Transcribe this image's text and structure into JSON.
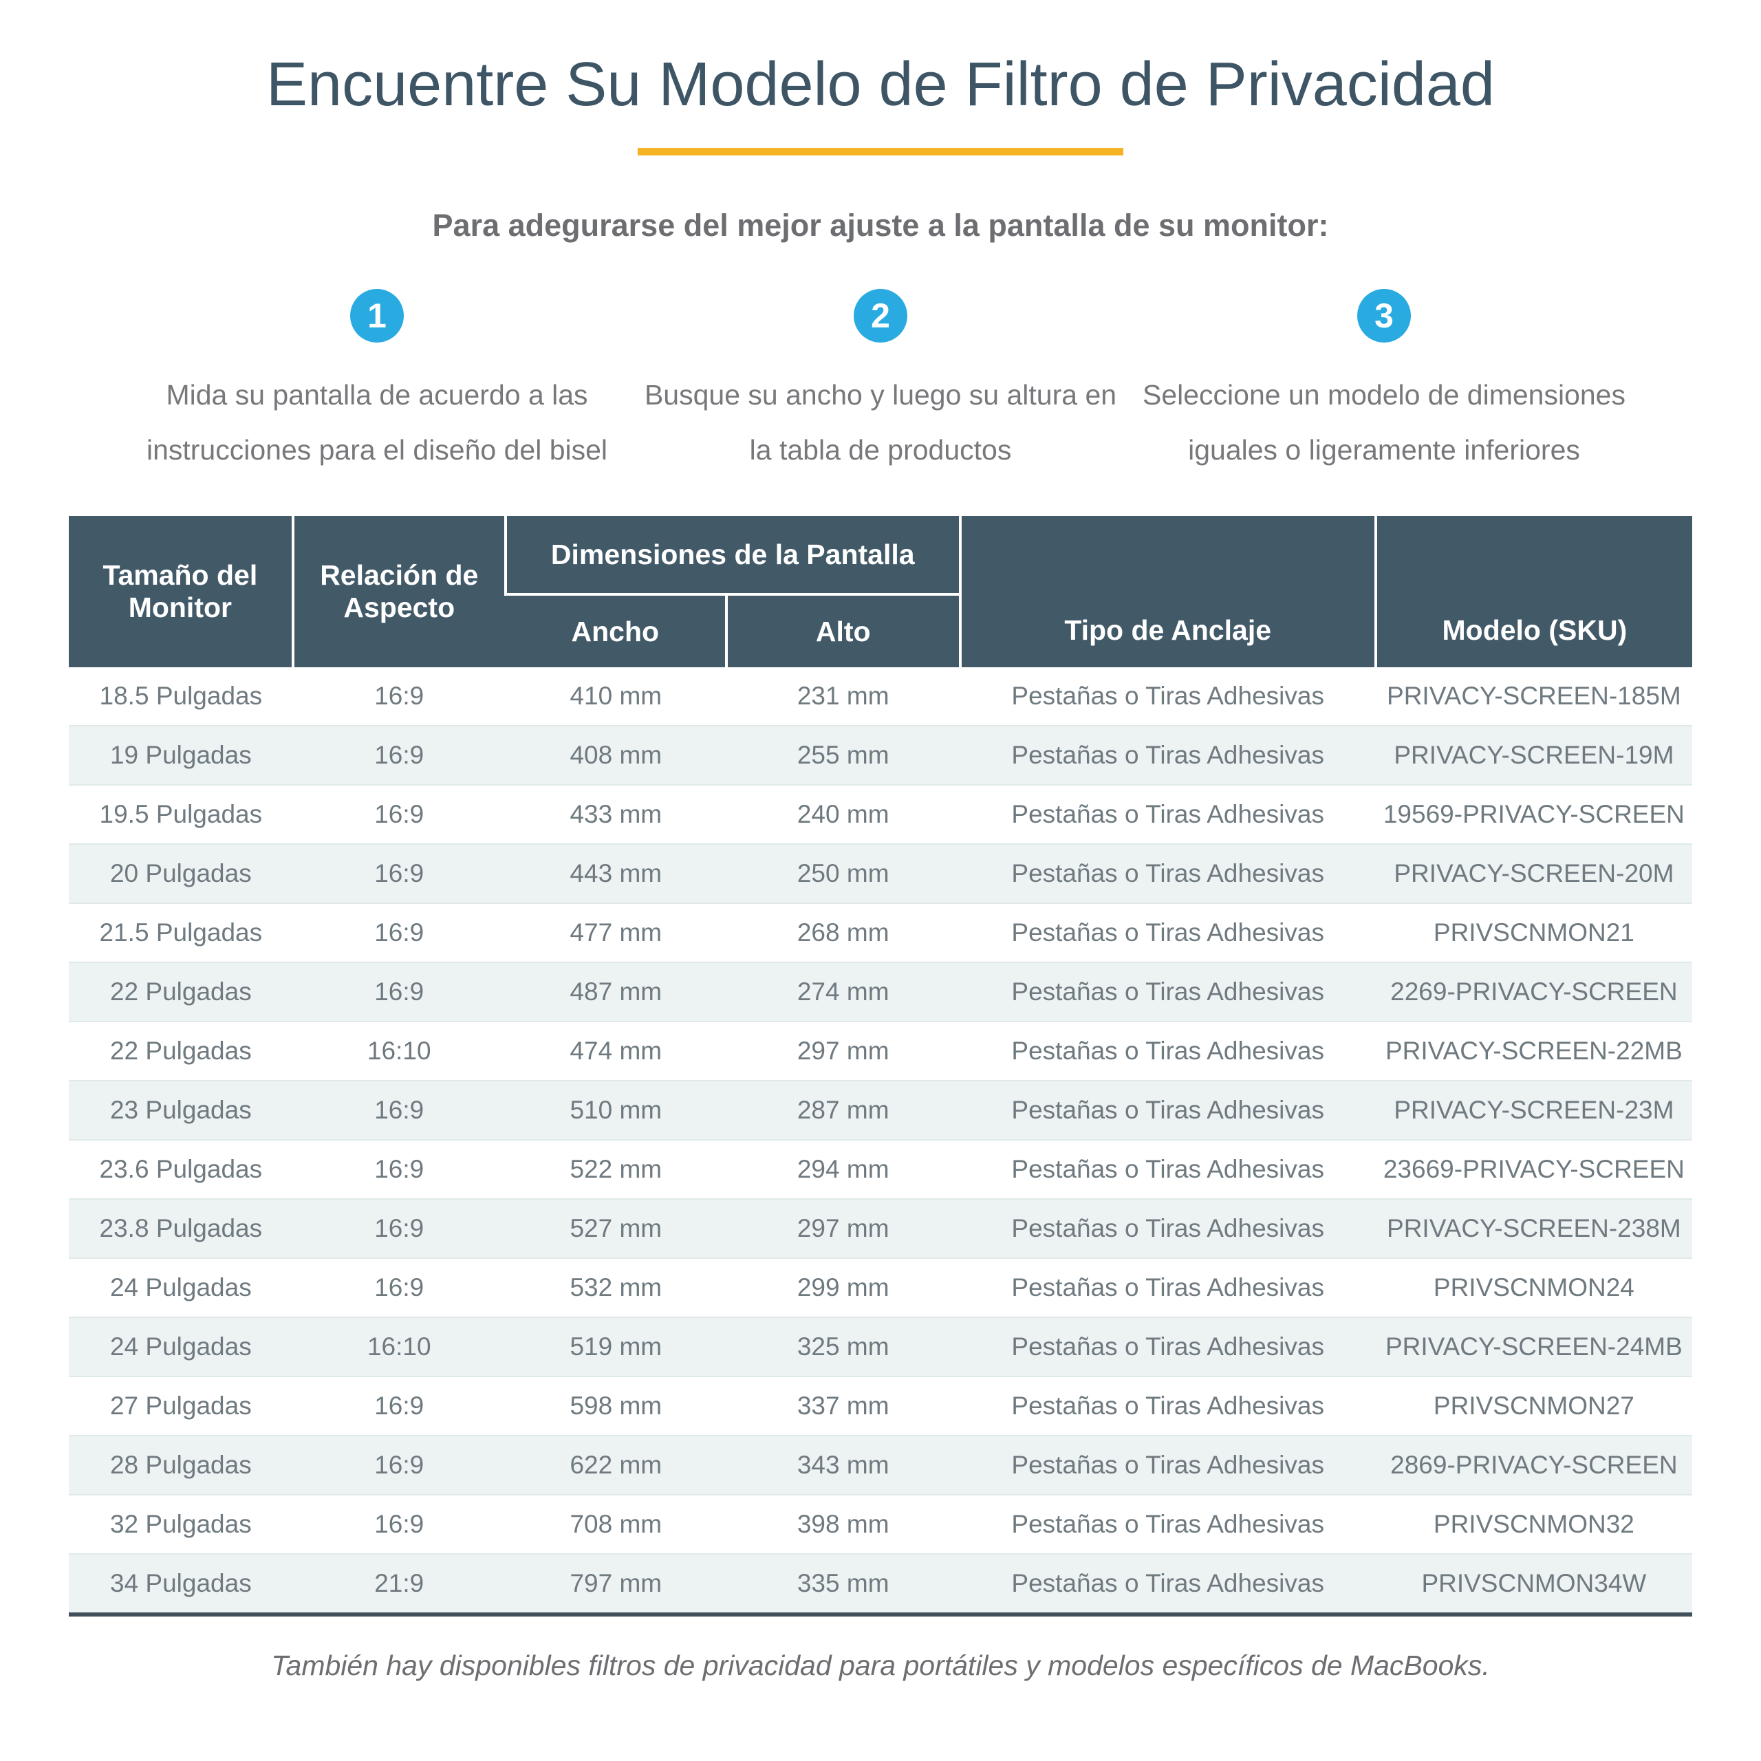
{
  "page": {
    "title": "Encuentre Su Modelo de Filtro de Privacidad",
    "subtitle": "Para adegurarse del mejor ajuste a la pantalla de su monitor:",
    "footnote": "También hay disponibles filtros de privacidad para portátiles y modelos específicos de MacBooks."
  },
  "steps": [
    {
      "number": "1",
      "text": "Mida su pantalla de acuerdo a las instrucciones para el diseño del bisel"
    },
    {
      "number": "2",
      "text": "Busque su ancho y luego su altura en la tabla de productos"
    },
    {
      "number": "3",
      "text": "Seleccione un modelo de dimensiones iguales o ligeramente inferiores"
    }
  ],
  "table": {
    "headers": {
      "monitor_size": "Tamaño del Monitor",
      "aspect_ratio": "Relación de Aspecto",
      "dimensions_group": "Dimensiones de la Pantalla",
      "width": "Ancho",
      "height": "Alto",
      "anchor_type": "Tipo de Anclaje",
      "model_sku": "Modelo (SKU)"
    },
    "rows": [
      [
        "18.5 Pulgadas",
        "16:9",
        "410 mm",
        "231 mm",
        "Pestañas o Tiras Adhesivas",
        "PRIVACY-SCREEN-185M"
      ],
      [
        "19 Pulgadas",
        "16:9",
        "408 mm",
        "255 mm",
        "Pestañas o Tiras Adhesivas",
        "PRIVACY-SCREEN-19M"
      ],
      [
        "19.5 Pulgadas",
        "16:9",
        "433 mm",
        "240 mm",
        "Pestañas o Tiras Adhesivas",
        "19569-PRIVACY-SCREEN"
      ],
      [
        "20 Pulgadas",
        "16:9",
        "443 mm",
        "250 mm",
        "Pestañas o Tiras Adhesivas",
        "PRIVACY-SCREEN-20M"
      ],
      [
        "21.5 Pulgadas",
        "16:9",
        "477 mm",
        "268 mm",
        "Pestañas o Tiras Adhesivas",
        "PRIVSCNMON21"
      ],
      [
        "22 Pulgadas",
        "16:9",
        "487 mm",
        "274 mm",
        "Pestañas o Tiras Adhesivas",
        "2269-PRIVACY-SCREEN"
      ],
      [
        "22 Pulgadas",
        "16:10",
        "474 mm",
        "297 mm",
        "Pestañas o Tiras Adhesivas",
        "PRIVACY-SCREEN-22MB"
      ],
      [
        "23 Pulgadas",
        "16:9",
        "510 mm",
        "287 mm",
        "Pestañas o Tiras Adhesivas",
        "PRIVACY-SCREEN-23M"
      ],
      [
        "23.6 Pulgadas",
        "16:9",
        "522 mm",
        "294 mm",
        "Pestañas o Tiras Adhesivas",
        "23669-PRIVACY-SCREEN"
      ],
      [
        "23.8 Pulgadas",
        "16:9",
        "527 mm",
        "297 mm",
        "Pestañas o Tiras Adhesivas",
        "PRIVACY-SCREEN-238M"
      ],
      [
        "24 Pulgadas",
        "16:9",
        "532 mm",
        "299 mm",
        "Pestañas o Tiras Adhesivas",
        "PRIVSCNMON24"
      ],
      [
        "24 Pulgadas",
        "16:10",
        "519 mm",
        "325 mm",
        "Pestañas o Tiras Adhesivas",
        "PRIVACY-SCREEN-24MB"
      ],
      [
        "27 Pulgadas",
        "16:9",
        "598 mm",
        "337 mm",
        "Pestañas o Tiras Adhesivas",
        "PRIVSCNMON27"
      ],
      [
        "28 Pulgadas",
        "16:9",
        "622 mm",
        "343 mm",
        "Pestañas o Tiras Adhesivas",
        "2869-PRIVACY-SCREEN"
      ],
      [
        "32 Pulgadas",
        "16:9",
        "708 mm",
        "398 mm",
        "Pestañas o Tiras Adhesivas",
        "PRIVSCNMON32"
      ],
      [
        "34 Pulgadas",
        "21:9",
        "797 mm",
        "335 mm",
        "Pestañas o Tiras Adhesivas",
        "PRIVSCNMON34W"
      ]
    ]
  },
  "colors": {
    "title_text": "#3e5565",
    "divider_yellow": "#f5b324",
    "step_circle_blue": "#29abe2",
    "header_background": "#425968",
    "header_text": "#ffffff",
    "row_alt_background": "#edf3f3",
    "body_text_gray": "#6f7a80",
    "table_bottom_border": "#42505c"
  }
}
